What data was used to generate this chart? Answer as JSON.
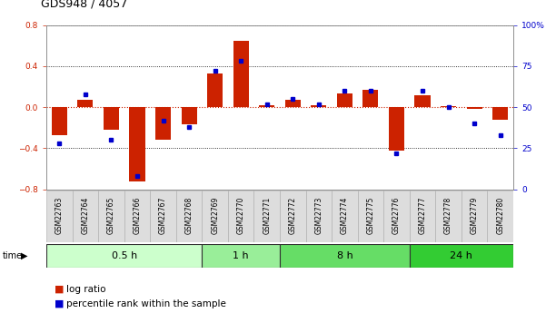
{
  "title": "GDS948 / 4057",
  "samples": [
    "GSM22763",
    "GSM22764",
    "GSM22765",
    "GSM22766",
    "GSM22767",
    "GSM22768",
    "GSM22769",
    "GSM22770",
    "GSM22771",
    "GSM22772",
    "GSM22773",
    "GSM22774",
    "GSM22775",
    "GSM22776",
    "GSM22777",
    "GSM22778",
    "GSM22779",
    "GSM22780"
  ],
  "log_ratio": [
    -0.27,
    0.07,
    -0.22,
    -0.72,
    -0.32,
    -0.17,
    0.33,
    0.65,
    0.02,
    0.07,
    0.02,
    0.13,
    0.17,
    -0.42,
    0.12,
    0.01,
    -0.02,
    -0.12
  ],
  "percentile": [
    28,
    58,
    30,
    8,
    42,
    38,
    72,
    78,
    52,
    55,
    52,
    60,
    60,
    22,
    60,
    50,
    40,
    33
  ],
  "groups": [
    {
      "label": "0.5 h",
      "start": 0,
      "end": 6,
      "color": "#ccffcc"
    },
    {
      "label": "1 h",
      "start": 6,
      "end": 9,
      "color": "#99ee99"
    },
    {
      "label": "8 h",
      "start": 9,
      "end": 14,
      "color": "#66dd66"
    },
    {
      "label": "24 h",
      "start": 14,
      "end": 18,
      "color": "#33cc33"
    }
  ],
  "ylim": [
    -0.8,
    0.8
  ],
  "yticks_left": [
    -0.8,
    -0.4,
    0.0,
    0.4,
    0.8
  ],
  "yticks_right": [
    0,
    25,
    50,
    75,
    100
  ],
  "bar_color": "#cc2200",
  "dot_color": "#0000cc",
  "zero_line_color": "#cc2200",
  "grid_color": "#000000",
  "bg_color": "#ffffff",
  "title_fontsize": 9,
  "tick_fontsize": 6.5,
  "legend_fontsize": 7.5,
  "group_fontsize": 8,
  "label_fontsize": 5.5
}
